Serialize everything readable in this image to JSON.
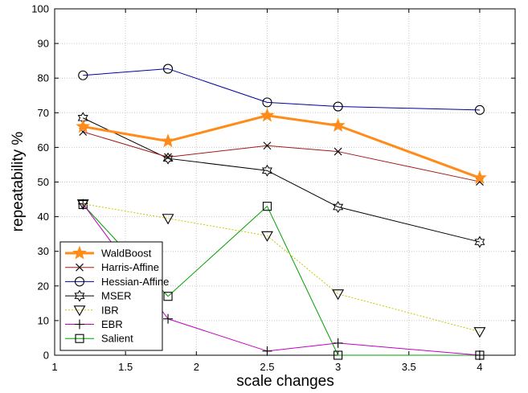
{
  "chart_data": {
    "type": "line",
    "xlabel": "scale changes",
    "ylabel": "repeatability %",
    "xlim": [
      1,
      4.25
    ],
    "ylim": [
      0,
      100
    ],
    "x_ticks": [
      "1",
      "1.5",
      "2",
      "2.5",
      "3",
      "3.5",
      "4"
    ],
    "y_ticks": [
      "0",
      "10",
      "20",
      "30",
      "40",
      "50",
      "60",
      "70",
      "80",
      "90",
      "100"
    ],
    "grid": true,
    "legend_position": "bottom-left",
    "series": [
      {
        "name": "WaldBoost",
        "marker": "star",
        "color": "#ff8c1a",
        "line": "solid",
        "width": 3,
        "x": [
          1.2,
          1.8,
          2.5,
          3,
          4
        ],
        "y": [
          66,
          61.8,
          69.2,
          66.3,
          51.2
        ]
      },
      {
        "name": "Harris-Affine",
        "marker": "x",
        "color": "#a01a1a",
        "line": "solid",
        "width": 1,
        "x": [
          1.2,
          1.8,
          2.5,
          3,
          4
        ],
        "y": [
          64.5,
          57.2,
          60.5,
          58.8,
          50.1
        ]
      },
      {
        "name": "Hessian-Affine",
        "marker": "circle",
        "color": "#0000a0",
        "line": "solid",
        "width": 1,
        "x": [
          1.2,
          1.8,
          2.5,
          3,
          4
        ],
        "y": [
          80.8,
          82.7,
          73,
          71.8,
          70.8
        ]
      },
      {
        "name": "MSER",
        "marker": "hexagram",
        "color": "#000000",
        "line": "solid",
        "width": 1,
        "x": [
          1.2,
          1.8,
          2.5,
          3,
          4
        ],
        "y": [
          68.5,
          56.8,
          53.3,
          42.8,
          32.7
        ]
      },
      {
        "name": "IBR",
        "marker": "triangle-down",
        "color": "#c8c800",
        "line": "dotted",
        "width": 1,
        "x": [
          1.2,
          1.8,
          2.5,
          3,
          4
        ],
        "y": [
          43.7,
          39.5,
          34.5,
          17.7,
          6.8
        ]
      },
      {
        "name": "EBR",
        "marker": "plus",
        "color": "#c000c0",
        "line": "solid",
        "width": 1,
        "x": [
          1.2,
          1.8,
          2.5,
          3,
          4
        ],
        "y": [
          43.7,
          10.5,
          1.2,
          3.5,
          0
        ]
      },
      {
        "name": "Salient",
        "marker": "square",
        "color": "#00a000",
        "line": "solid",
        "width": 1,
        "x": [
          1.2,
          1.8,
          2.5,
          3,
          4
        ],
        "y": [
          43.5,
          17,
          43,
          0,
          0
        ]
      }
    ]
  }
}
